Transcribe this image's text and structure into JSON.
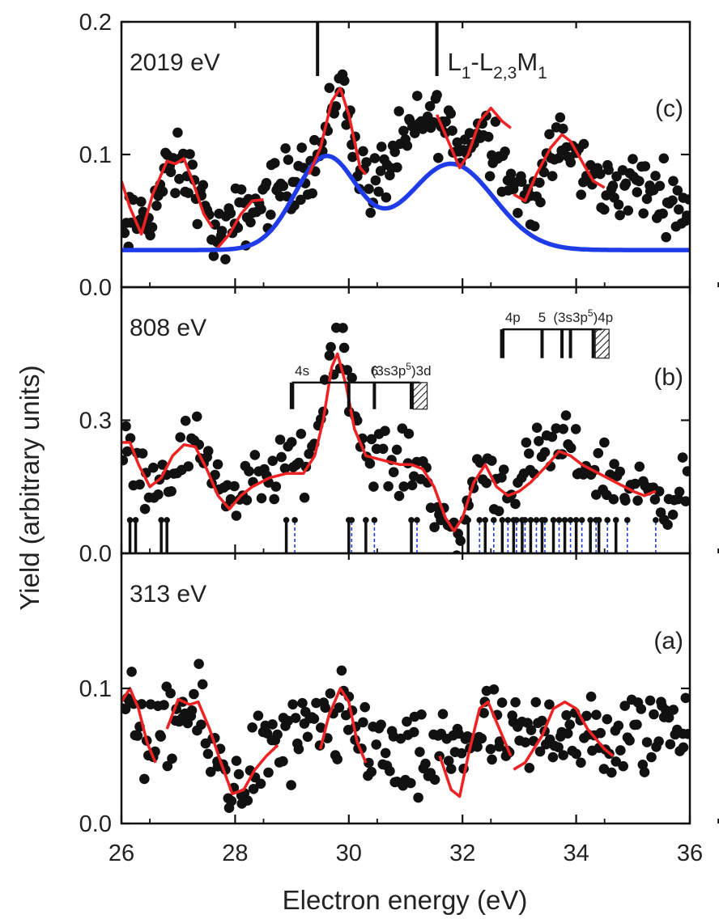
{
  "chart_data": {
    "type": "scatter",
    "xlabel": "Electron energy (eV)",
    "ylabel": "Yield (arbitrary units)",
    "xlim": [
      26,
      36
    ],
    "x_ticks": [
      "26",
      "28",
      "30",
      "32",
      "34",
      "36"
    ],
    "panels": [
      {
        "id": "c",
        "panel_label": "(c)",
        "energy_label": "2019 eV",
        "ylim": [
          0,
          0.2
        ],
        "y_ticks": [
          {
            "v": 0.0,
            "label": "0.0"
          },
          {
            "v": 0.1,
            "label": "0.1"
          },
          {
            "v": 0.2,
            "label": "0.2"
          }
        ],
        "annotation": {
          "main": "L",
          "sub1": "1",
          "mid": "-L",
          "sub2": "2,3",
          "end": "M",
          "sub3": "1"
        },
        "marker_lines_x": [
          29.45,
          31.55
        ],
        "points_envelope": [
          [
            26.0,
            0.03
          ],
          [
            26.2,
            0.05
          ],
          [
            26.5,
            0.055
          ],
          [
            26.8,
            0.085
          ],
          [
            27.0,
            0.09
          ],
          [
            27.3,
            0.08
          ],
          [
            27.5,
            0.05
          ],
          [
            27.8,
            0.035
          ],
          [
            28.0,
            0.05
          ],
          [
            28.3,
            0.06
          ],
          [
            28.6,
            0.07
          ],
          [
            28.9,
            0.08
          ],
          [
            29.2,
            0.09
          ],
          [
            29.5,
            0.1
          ],
          [
            29.7,
            0.135
          ],
          [
            29.85,
            0.16
          ],
          [
            30.0,
            0.125
          ],
          [
            30.2,
            0.09
          ],
          [
            30.4,
            0.075
          ],
          [
            30.6,
            0.085
          ],
          [
            30.9,
            0.105
          ],
          [
            31.2,
            0.12
          ],
          [
            31.5,
            0.13
          ],
          [
            31.8,
            0.115
          ],
          [
            32.0,
            0.105
          ],
          [
            32.3,
            0.12
          ],
          [
            32.6,
            0.11
          ],
          [
            32.9,
            0.075
          ],
          [
            33.2,
            0.065
          ],
          [
            33.5,
            0.09
          ],
          [
            33.75,
            0.11
          ],
          [
            34.0,
            0.095
          ],
          [
            34.3,
            0.08
          ],
          [
            34.6,
            0.075
          ],
          [
            35.0,
            0.078
          ],
          [
            35.5,
            0.07
          ],
          [
            36.0,
            0.062
          ]
        ],
        "noise": 0.012,
        "n_points": 300,
        "red_segments": [
          [
            [
              26.0,
              0.08
            ],
            [
              26.15,
              0.06
            ],
            [
              26.35,
              0.04
            ],
            [
              26.55,
              0.07
            ],
            [
              26.8,
              0.095
            ],
            [
              26.95,
              0.093
            ],
            [
              27.1,
              0.097
            ],
            [
              27.25,
              0.08
            ],
            [
              27.45,
              0.055
            ],
            [
              27.6,
              0.045
            ]
          ],
          [
            [
              27.7,
              0.03
            ],
            [
              27.9,
              0.04
            ],
            [
              28.1,
              0.055
            ],
            [
              28.3,
              0.065
            ],
            [
              28.5,
              0.066
            ]
          ],
          [
            [
              29.3,
              0.085
            ],
            [
              29.5,
              0.105
            ],
            [
              29.7,
              0.14
            ],
            [
              29.85,
              0.15
            ],
            [
              30.0,
              0.13
            ],
            [
              30.2,
              0.09
            ],
            [
              30.3,
              0.085
            ]
          ],
          [
            [
              31.55,
              0.13
            ],
            [
              31.75,
              0.11
            ],
            [
              31.95,
              0.09
            ],
            [
              32.1,
              0.1
            ],
            [
              32.3,
              0.125
            ],
            [
              32.5,
              0.135
            ],
            [
              32.7,
              0.125
            ],
            [
              32.85,
              0.12
            ]
          ],
          [
            [
              32.9,
              0.07
            ],
            [
              33.1,
              0.065
            ],
            [
              33.3,
              0.085
            ],
            [
              33.55,
              0.105
            ],
            [
              33.75,
              0.115
            ],
            [
              33.9,
              0.11
            ],
            [
              34.1,
              0.095
            ],
            [
              34.3,
              0.08
            ],
            [
              34.5,
              0.075
            ]
          ]
        ],
        "blue_fit": {
          "baseline": 0.028,
          "peaks": [
            {
              "center": 29.6,
              "amplitude": 0.07,
              "sigma": 0.55
            },
            {
              "center": 31.8,
              "amplitude": 0.065,
              "sigma": 0.75
            }
          ]
        }
      },
      {
        "id": "b",
        "panel_label": "(b)",
        "energy_label": "808 eV",
        "ylim": [
          0,
          0.6
        ],
        "y_ticks": [
          {
            "v": 0.0,
            "label": "0.0"
          },
          {
            "v": 0.3,
            "label": "0.3"
          }
        ],
        "points_envelope": [
          [
            26.0,
            0.23
          ],
          [
            26.3,
            0.2
          ],
          [
            26.6,
            0.16
          ],
          [
            26.9,
            0.2
          ],
          [
            27.2,
            0.25
          ],
          [
            27.5,
            0.23
          ],
          [
            27.8,
            0.15
          ],
          [
            28.0,
            0.12
          ],
          [
            28.3,
            0.15
          ],
          [
            28.6,
            0.18
          ],
          [
            28.9,
            0.2
          ],
          [
            29.2,
            0.2
          ],
          [
            29.4,
            0.25
          ],
          [
            29.6,
            0.4
          ],
          [
            29.8,
            0.52
          ],
          [
            30.0,
            0.4
          ],
          [
            30.2,
            0.25
          ],
          [
            30.5,
            0.22
          ],
          [
            30.8,
            0.2
          ],
          [
            31.1,
            0.2
          ],
          [
            31.4,
            0.17
          ],
          [
            31.6,
            0.1
          ],
          [
            31.8,
            0.02
          ],
          [
            32.0,
            0.05
          ],
          [
            32.2,
            0.18
          ],
          [
            32.4,
            0.2
          ],
          [
            32.7,
            0.15
          ],
          [
            33.0,
            0.17
          ],
          [
            33.3,
            0.2
          ],
          [
            33.6,
            0.24
          ],
          [
            33.9,
            0.23
          ],
          [
            34.2,
            0.2
          ],
          [
            34.6,
            0.17
          ],
          [
            35.0,
            0.15
          ],
          [
            35.3,
            0.14
          ]
        ],
        "noise": 0.035,
        "n_points": 210,
        "red_segments": [
          [
            [
              26.0,
              0.25
            ],
            [
              26.15,
              0.25
            ],
            [
              26.3,
              0.2
            ],
            [
              26.5,
              0.15
            ],
            [
              26.7,
              0.17
            ],
            [
              26.9,
              0.22
            ],
            [
              27.1,
              0.245
            ],
            [
              27.3,
              0.24
            ],
            [
              27.5,
              0.19
            ],
            [
              27.7,
              0.13
            ],
            [
              27.9,
              0.1
            ],
            [
              28.1,
              0.13
            ],
            [
              28.3,
              0.15
            ],
            [
              28.6,
              0.17
            ],
            [
              28.9,
              0.18
            ],
            [
              29.2,
              0.18
            ],
            [
              29.4,
              0.22
            ],
            [
              29.55,
              0.3
            ],
            [
              29.7,
              0.42
            ],
            [
              29.8,
              0.45
            ],
            [
              29.95,
              0.38
            ],
            [
              30.1,
              0.28
            ],
            [
              30.3,
              0.22
            ],
            [
              30.6,
              0.21
            ],
            [
              30.9,
              0.2
            ],
            [
              31.1,
              0.2
            ],
            [
              31.3,
              0.19
            ],
            [
              31.5,
              0.15
            ],
            [
              31.7,
              0.08
            ],
            [
              31.85,
              0.05
            ],
            [
              32.0,
              0.08
            ],
            [
              32.2,
              0.16
            ],
            [
              32.4,
              0.2
            ],
            [
              32.6,
              0.15
            ],
            [
              32.8,
              0.13
            ],
            [
              33.0,
              0.14
            ],
            [
              33.2,
              0.16
            ],
            [
              33.5,
              0.2
            ],
            [
              33.7,
              0.23
            ],
            [
              33.9,
              0.22
            ],
            [
              34.1,
              0.2
            ],
            [
              34.4,
              0.18
            ],
            [
              34.7,
              0.16
            ],
            [
              35.0,
              0.14
            ],
            [
              35.2,
              0.13
            ],
            [
              35.4,
              0.14
            ]
          ]
        ],
        "sticks_black": [
          26.15,
          26.25,
          26.7,
          26.8,
          28.9,
          30.0,
          30.3,
          31.1,
          32.1,
          32.4,
          32.7,
          32.9,
          33.05,
          33.2,
          33.4,
          33.6,
          33.8,
          34.0,
          34.25,
          34.4,
          34.7
        ],
        "sticks_blue": [
          29.05,
          30.05,
          30.45,
          31.2,
          32.3,
          32.55,
          32.8,
          32.95,
          33.1,
          33.3,
          33.45,
          33.7,
          33.9,
          34.1,
          34.35,
          34.55,
          34.9,
          35.4
        ],
        "series_a": {
          "x_start": 29.0,
          "x_end": 31.1,
          "tops": [
            29.0,
            30.0,
            30.45,
            31.1
          ],
          "limit": 31.25,
          "labels": [
            {
              "text": "4s",
              "x": 29.05
            },
            {
              "text": "6",
              "x": 30.45
            }
          ]
        },
        "series_b": {
          "x_start": 32.7,
          "x_end": 34.3,
          "tops": [
            32.7,
            33.4,
            33.75,
            33.9,
            34.3
          ],
          "limit": 34.45,
          "labels": [
            {
              "text": "4p",
              "x": 32.75
            },
            {
              "text": "5",
              "x": 33.4
            }
          ]
        },
        "limit_a": {
          "pre": "(3s3p",
          "sup": "5",
          "post": ")3d"
        },
        "limit_b": {
          "pre": "(3s3p",
          "sup": "5",
          "post": ")4p"
        }
      },
      {
        "id": "a",
        "panel_label": "(a)",
        "energy_label": "313 eV",
        "ylim": [
          0,
          0.2
        ],
        "y_ticks": [
          {
            "v": 0.0,
            "label": "0.0"
          },
          {
            "v": 0.1,
            "label": "0.1"
          }
        ],
        "points_envelope": [
          [
            26.0,
            0.085
          ],
          [
            26.3,
            0.08
          ],
          [
            26.6,
            0.05
          ],
          [
            26.9,
            0.075
          ],
          [
            27.2,
            0.085
          ],
          [
            27.5,
            0.065
          ],
          [
            27.8,
            0.035
          ],
          [
            28.0,
            0.03
          ],
          [
            28.3,
            0.045
          ],
          [
            28.6,
            0.055
          ],
          [
            29.0,
            0.06
          ],
          [
            29.3,
            0.065
          ],
          [
            29.6,
            0.07
          ],
          [
            29.9,
            0.075
          ],
          [
            30.2,
            0.065
          ],
          [
            30.5,
            0.06
          ],
          [
            30.8,
            0.045
          ],
          [
            31.1,
            0.04
          ],
          [
            31.4,
            0.045
          ],
          [
            31.7,
            0.055
          ],
          [
            32.0,
            0.06
          ],
          [
            32.3,
            0.07
          ],
          [
            32.6,
            0.065
          ],
          [
            32.9,
            0.055
          ],
          [
            33.2,
            0.06
          ],
          [
            33.5,
            0.07
          ],
          [
            33.8,
            0.075
          ],
          [
            34.1,
            0.065
          ],
          [
            34.4,
            0.055
          ],
          [
            34.7,
            0.06
          ],
          [
            35.0,
            0.065
          ],
          [
            35.3,
            0.07
          ],
          [
            35.6,
            0.075
          ],
          [
            36.0,
            0.075
          ]
        ],
        "noise": 0.017,
        "n_points": 260,
        "red_segments": [
          [
            [
              26.0,
              0.09
            ],
            [
              26.15,
              0.1
            ],
            [
              26.3,
              0.085
            ],
            [
              26.45,
              0.06
            ],
            [
              26.6,
              0.045
            ]
          ],
          [
            [
              26.8,
              0.07
            ],
            [
              27.0,
              0.092
            ],
            [
              27.2,
              0.088
            ],
            [
              27.35,
              0.09
            ],
            [
              27.55,
              0.07
            ],
            [
              27.75,
              0.045
            ],
            [
              27.95,
              0.022
            ],
            [
              28.15,
              0.025
            ],
            [
              28.35,
              0.04
            ],
            [
              28.55,
              0.05
            ],
            [
              28.75,
              0.058
            ]
          ],
          [
            [
              29.5,
              0.055
            ],
            [
              29.65,
              0.08
            ],
            [
              29.85,
              0.1
            ],
            [
              30.0,
              0.09
            ],
            [
              30.15,
              0.06
            ],
            [
              30.3,
              0.045
            ]
          ],
          [
            [
              31.6,
              0.05
            ],
            [
              31.8,
              0.025
            ],
            [
              31.95,
              0.02
            ],
            [
              32.1,
              0.05
            ],
            [
              32.3,
              0.085
            ],
            [
              32.45,
              0.09
            ],
            [
              32.65,
              0.07
            ],
            [
              32.85,
              0.05
            ]
          ],
          [
            [
              32.9,
              0.04
            ],
            [
              33.1,
              0.045
            ],
            [
              33.4,
              0.065
            ],
            [
              33.6,
              0.085
            ],
            [
              33.8,
              0.09
            ],
            [
              34.0,
              0.085
            ],
            [
              34.2,
              0.07
            ],
            [
              34.5,
              0.055
            ],
            [
              34.65,
              0.05
            ]
          ]
        ]
      }
    ]
  }
}
